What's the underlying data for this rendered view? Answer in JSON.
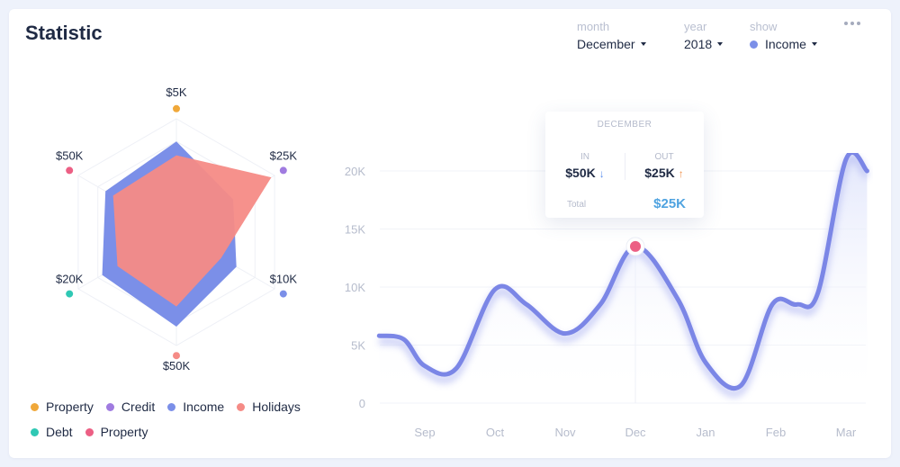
{
  "title": "Statistic",
  "controls": {
    "month": {
      "label": "month",
      "value": "December"
    },
    "year": {
      "label": "year",
      "value": "2018"
    },
    "show": {
      "label": "show",
      "value": "Income"
    }
  },
  "colors": {
    "property": "#f0a83a",
    "credit": "#a07be0",
    "income": "#7b8fe8",
    "holidays": "#f58b86",
    "debt": "#2fc8b4",
    "property2": "#ec5f84",
    "line": "#7b86e6",
    "total": "#4fa3e0"
  },
  "tooltip": {
    "month": "DECEMBER",
    "in_label": "IN",
    "in_value": "$50K",
    "out_label": "OUT",
    "out_value": "$25K",
    "total_label": "Total",
    "total_value": "$25K"
  },
  "chart_data": [
    {
      "type": "radar",
      "axes": [
        "$5K",
        "$25K",
        "$10K",
        "$50K",
        "$20K",
        "$50K"
      ],
      "series": [
        {
          "name": "Income",
          "values": [
            0.72,
            0.52,
            0.55,
            0.75,
            0.68,
            0.65
          ]
        },
        {
          "name": "Holidays",
          "values": [
            0.61,
            0.87,
            0.41,
            0.59,
            0.54,
            0.58
          ]
        }
      ],
      "legend": [
        {
          "name": "Property",
          "color": "#f0a83a"
        },
        {
          "name": "Credit",
          "color": "#a07be0"
        },
        {
          "name": "Income",
          "color": "#7b8fe8"
        },
        {
          "name": "Holidays",
          "color": "#f58b86"
        },
        {
          "name": "Debt",
          "color": "#2fc8b4"
        },
        {
          "name": "Property",
          "color": "#ec5f84"
        }
      ]
    },
    {
      "type": "line",
      "series_name": "Income",
      "ylabels": [
        "0",
        "5K",
        "10K",
        "15K",
        "20K"
      ],
      "yticks": [
        0,
        5000,
        10000,
        15000,
        20000
      ],
      "ylim": [
        0,
        20000
      ],
      "categories": [
        "Sep",
        "Oct",
        "Nov",
        "Dec",
        "Jan",
        "Feb",
        "Mar"
      ],
      "x": [
        -0.65,
        -0.3,
        0,
        0.45,
        1,
        1.45,
        2,
        2.5,
        3,
        3.6,
        4,
        4.5,
        4.95,
        5.3,
        5.6,
        6,
        6.3
      ],
      "values": [
        5800,
        5500,
        3200,
        3000,
        9800,
        8500,
        6000,
        8500,
        13500,
        9000,
        3500,
        1500,
        8500,
        8500,
        9500,
        21000,
        20000
      ],
      "highlight": {
        "category": "Dec",
        "x": 3,
        "value": 13500
      }
    }
  ]
}
